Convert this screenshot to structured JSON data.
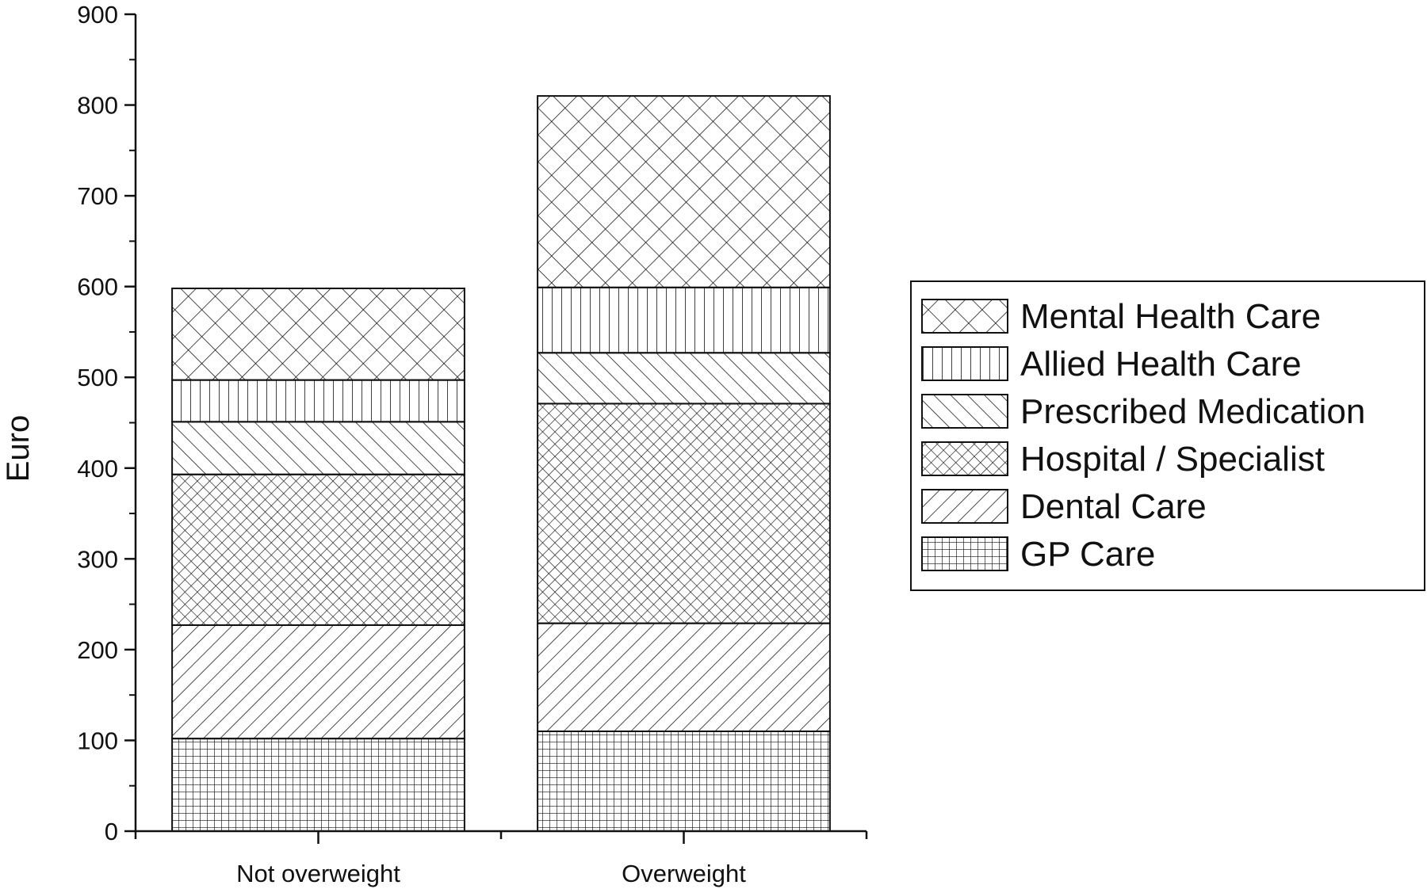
{
  "chart_data": {
    "type": "bar",
    "stacked": true,
    "categories": [
      "Not overweight",
      "Overweight"
    ],
    "series": [
      {
        "name": "GP Care",
        "values": [
          102,
          110
        ],
        "pattern": "grid"
      },
      {
        "name": "Dental Care",
        "values": [
          125,
          119
        ],
        "pattern": "forward-diagonal"
      },
      {
        "name": "Hospital / Specialist",
        "values": [
          166,
          242
        ],
        "pattern": "fine-crosshatch"
      },
      {
        "name": "Prescribed Medication",
        "values": [
          58,
          56
        ],
        "pattern": "back-diagonal"
      },
      {
        "name": "Allied Health Care",
        "values": [
          46,
          72
        ],
        "pattern": "vertical"
      },
      {
        "name": "Mental Health Care",
        "values": [
          101,
          211
        ],
        "pattern": "coarse-crosshatch"
      }
    ],
    "legend_order": [
      "Mental Health Care",
      "Allied Health Care",
      "Prescribed Medication",
      "Hospital / Specialist",
      "Dental Care",
      "GP Care"
    ],
    "xlabel": "",
    "ylabel": "Euro",
    "ylim": [
      0,
      900
    ],
    "yticks": [
      "0",
      "100",
      "200",
      "300",
      "400",
      "500",
      "600",
      "700",
      "800",
      "900"
    ],
    "grid": false,
    "legend_position": "right",
    "colors": {
      "stroke": "#111111",
      "fill": "#ffffff"
    }
  }
}
